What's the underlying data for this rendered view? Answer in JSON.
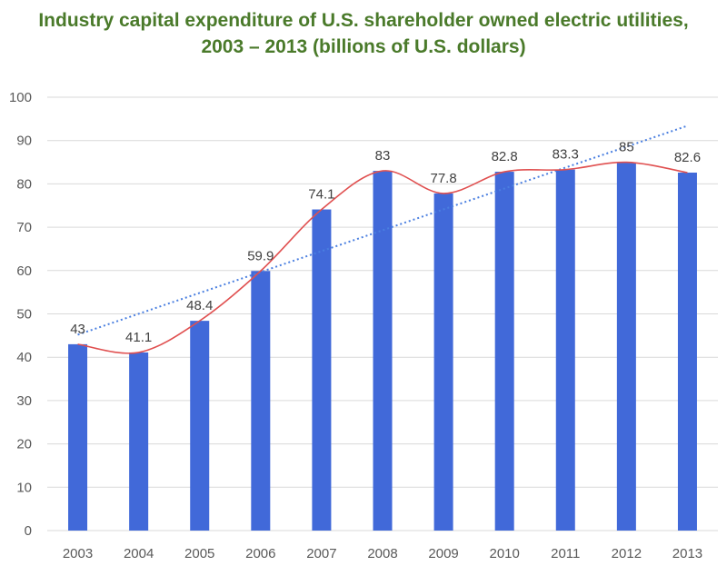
{
  "chart_data": {
    "type": "bar",
    "title_line1": "Industry capital expenditure of U.S. shareholder owned electric utilities,",
    "title_line2": "2003 – 2013 (billions of U.S. dollars)",
    "xlabel": "",
    "ylabel": "",
    "categories": [
      "2003",
      "2004",
      "2005",
      "2006",
      "2007",
      "2008",
      "2009",
      "2010",
      "2011",
      "2012",
      "2013"
    ],
    "values": [
      43,
      41.1,
      48.4,
      59.9,
      74.1,
      83,
      77.8,
      82.8,
      83.3,
      85,
      82.6
    ],
    "data_labels": [
      "43",
      "41.1",
      "48.4",
      "59.9",
      "74.1",
      "83",
      "77.8",
      "82.8",
      "83.3",
      "85",
      "82.6"
    ],
    "ylim": [
      0,
      100
    ],
    "yticks": [
      0,
      10,
      20,
      30,
      40,
      50,
      60,
      70,
      80,
      90,
      100
    ],
    "grid": true,
    "legend": "none",
    "overlays": [
      {
        "name": "smoothed line",
        "type": "line",
        "smooth": true,
        "values": [
          43,
          41.1,
          48.4,
          59.9,
          74.1,
          83,
          77.8,
          82.8,
          83.3,
          85,
          82.6
        ]
      },
      {
        "name": "linear trendline",
        "type": "line",
        "style": "dotted",
        "start": 45.2,
        "end": 93.4
      }
    ],
    "colors": {
      "bar": "#4169d9",
      "smooth_line": "#e05050",
      "trendline": "#4a7fe0",
      "title": "#4a7a2a",
      "grid": "#d9d9d9"
    }
  }
}
